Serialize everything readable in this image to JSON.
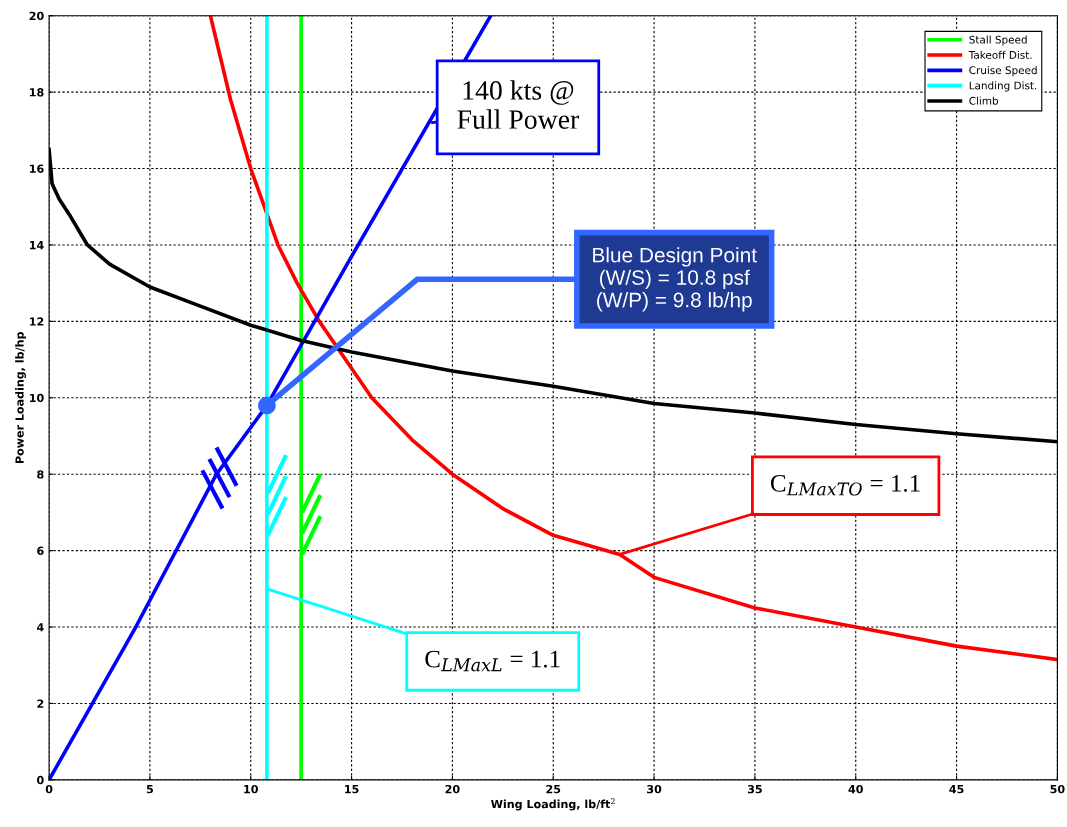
{
  "chart_data": {
    "type": "line",
    "xlabel": "Wing Loading, lb/ft$^{2}$",
    "ylabel": "Power Loading, lb/hp",
    "xlim": [
      0,
      50
    ],
    "xticks": [
      0,
      5,
      10,
      15,
      20,
      25,
      30,
      35,
      40,
      45,
      50
    ],
    "ylim": [
      0,
      20
    ],
    "yticks": [
      0,
      2,
      4,
      6,
      8,
      10,
      12,
      14,
      16,
      18,
      20
    ],
    "grid": true,
    "legend": "top right",
    "line_style": "solid",
    "marker": "none",
    "series": [
      {
        "name": "Stall Speed",
        "color": "#00ff00",
        "x": [
          12.5,
          12.5
        ],
        "values": [
          0,
          20
        ]
      },
      {
        "name": "Takeoff Dist.",
        "color": "#ff0000",
        "x": [
          8,
          9,
          10,
          11.35,
          12.3,
          13.4,
          14.7,
          16,
          18,
          20,
          22.5,
          25,
          28.3,
          30,
          35,
          40,
          45,
          50
        ],
        "values": [
          20,
          17.8,
          16,
          14,
          13,
          12,
          11,
          10,
          8.9,
          8,
          7.1,
          6.4,
          5.9,
          5.3,
          4.5,
          4.0,
          3.5,
          3.15
        ]
      },
      {
        "name": "Cruise Speed",
        "color": "#0000ff",
        "x": [
          0,
          4.3,
          8.3,
          10.8,
          15,
          21.9
        ],
        "values": [
          0,
          4,
          8,
          9.8,
          13.7,
          20
        ]
      },
      {
        "name": "Landing Dist.",
        "color": "#00ffff",
        "x": [
          10.8,
          10.8
        ],
        "values": [
          0,
          20
        ]
      },
      {
        "name": "Climb",
        "color": "#000000",
        "x": [
          0,
          0.15,
          0.5,
          1,
          1.9,
          3,
          5,
          7.5,
          10,
          12.5,
          15,
          20,
          25,
          30,
          35,
          40,
          45,
          50
        ],
        "values": [
          16.5,
          15.6,
          15.2,
          14.8,
          14,
          13.5,
          12.9,
          12.4,
          11.9,
          11.5,
          11.2,
          10.7,
          10.3,
          9.85,
          9.6,
          9.3,
          9.06,
          8.85
        ]
      },
      {
        "type": "scatter",
        "marker": "circle",
        "color": "#3366ff",
        "x": [
          10.8
        ],
        "values": [
          9.8
        ]
      }
    ],
    "annotations": [
      {
        "text": "140 kts @\nFull Power",
        "x": 19,
        "y": 17.2
      },
      {
        "text": "Blue Design Point\n(W/S) = 10.8 psf\n(W/P) = 9.8 lb/hp",
        "x": 10.8,
        "y": 9.8
      },
      {
        "text": "C$_{LMaxTO}$ = 1.1",
        "x": 28.3,
        "y": 5.9
      },
      {
        "text": "C$_{LMaxL}$ = 1.1",
        "x": 10.8,
        "y": 5.0
      }
    ]
  }
}
